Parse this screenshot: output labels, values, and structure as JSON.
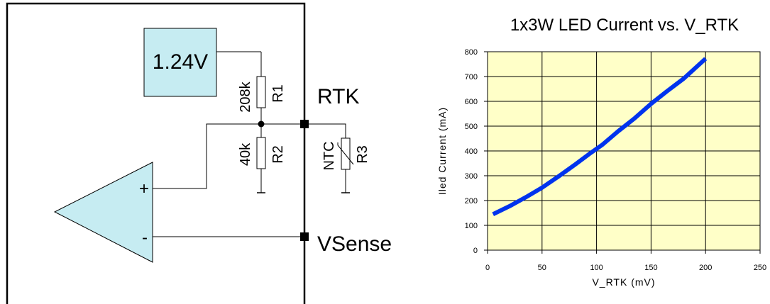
{
  "schematic": {
    "reference": "1.24V",
    "r1_value": "208k",
    "r1_name": "R1",
    "r2_value": "40k",
    "r2_name": "R2",
    "ntc_label": "NTC",
    "r3_name": "R3",
    "rtk_label": "RTK",
    "vsense_label": "VSense",
    "plus_sign": "+",
    "minus_sign": "-"
  },
  "colors": {
    "opamp_fill": "#c6ecf2",
    "reference_fill": "#c6ecf2",
    "plot_bg": "#ffffc8",
    "curve": "#0033ee",
    "wire": "#000000"
  },
  "chart_data": {
    "type": "line",
    "title": "1x3W LED Current vs. V_RTK",
    "xlabel": "V_RTK (mV)",
    "ylabel": "Iled Current (mA)",
    "xlim": [
      0,
      250
    ],
    "ylim": [
      0,
      800
    ],
    "xticks": [
      0,
      50,
      100,
      150,
      200,
      250
    ],
    "yticks": [
      0,
      100,
      200,
      300,
      400,
      500,
      600,
      700,
      800
    ],
    "grid": true,
    "series": [
      {
        "x": [
          5,
          20,
          35,
          50,
          65,
          80,
          95,
          105,
          120,
          135,
          150,
          165,
          180,
          200
        ],
        "y": [
          145,
          177,
          213,
          252,
          297,
          344,
          393,
          424,
          480,
          532,
          590,
          642,
          692,
          772
        ]
      }
    ]
  }
}
